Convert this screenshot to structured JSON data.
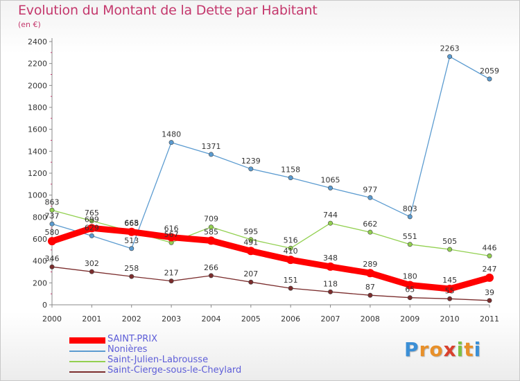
{
  "title": "Evolution du Montant de la Dette par Habitant",
  "subtitle": "(en €)",
  "logo": {
    "letters": [
      "P",
      "r",
      "o",
      "x",
      "i",
      "t",
      "i"
    ],
    "colors": [
      "#3b8fd6",
      "#e8902a",
      "#e8902a",
      "#d9412e",
      "#7cc144",
      "#e8902a",
      "#3b8fd6"
    ]
  },
  "chart_data": {
    "type": "line",
    "x": [
      "2000",
      "2001",
      "2002",
      "2003",
      "2004",
      "2005",
      "2006",
      "2007",
      "2008",
      "2009",
      "2010",
      "2011"
    ],
    "ylim": [
      0,
      2400
    ],
    "yticks": [
      0,
      200,
      400,
      600,
      800,
      1000,
      1200,
      1400,
      1600,
      1800,
      2000,
      2200,
      2400
    ],
    "grid": false,
    "legend_position": "bottom-left",
    "series": [
      {
        "name": "Nonières",
        "color": "#5b9bd0",
        "values": [
          737,
          629,
          513,
          1480,
          1371,
          1239,
          1158,
          1065,
          977,
          803,
          2263,
          2059
        ]
      },
      {
        "name": "Saint-Julien-Labrousse",
        "color": "#92d050",
        "values": [
          863,
          765,
          668,
          567,
          709,
          595,
          516,
          744,
          662,
          551,
          505,
          446
        ]
      },
      {
        "name": "Saint-Cierge-sous-le-Cheylard",
        "color": "#7b2d2d",
        "values": [
          346,
          302,
          258,
          217,
          266,
          207,
          151,
          118,
          87,
          65,
          55,
          39
        ]
      },
      {
        "name": "SAINT-PRIX",
        "color": "#ff0000",
        "values": [
          580,
          699,
          665,
          616,
          585,
          491,
          410,
          348,
          289,
          180,
          145,
          247
        ]
      }
    ]
  },
  "legend_order": [
    3,
    0,
    1,
    2
  ]
}
